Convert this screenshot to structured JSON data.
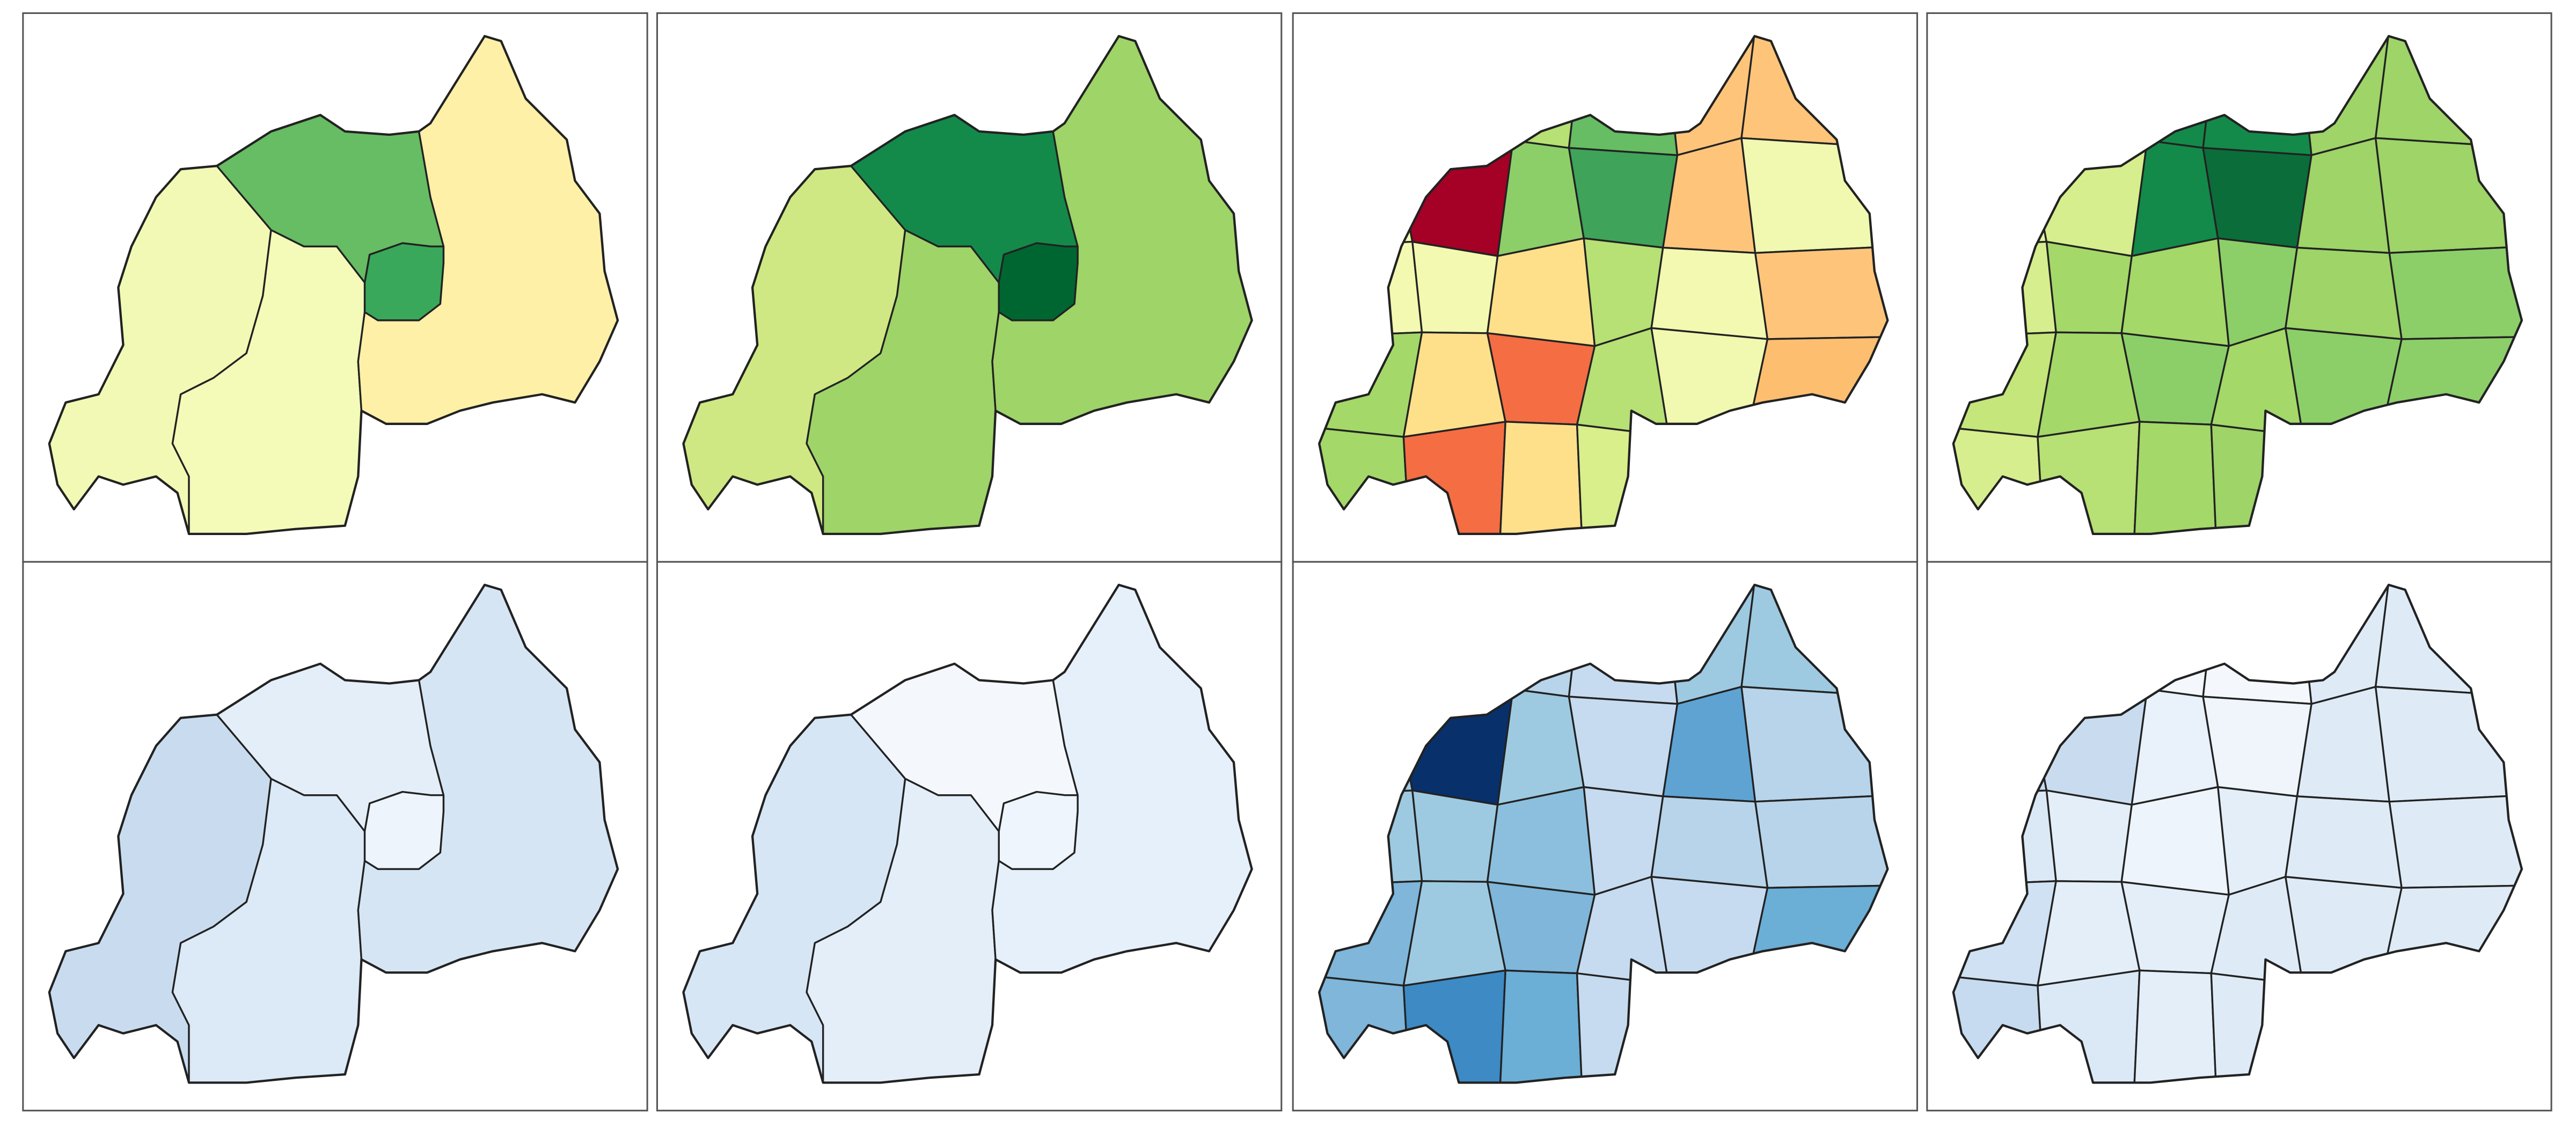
{
  "panels": [
    {
      "colors": [
        "#f2f9b4",
        "#f4fab8",
        "#66bd63",
        "#3aa85a",
        "#fff0a8"
      ]
    },
    {
      "colors": [
        "#cfe883",
        "#9ed468",
        "#138a4a",
        "#006631",
        "#9ed468"
      ]
    },
    {
      "colors": [
        "#f3f9b0",
        "#eef7b0",
        "#b7e075",
        "#66bd63",
        "#fec57a",
        "#fec57a",
        "#eef7b0",
        "#a50026",
        "#8ccf69",
        "#3fa35a",
        "#fec57a",
        "#f1f8b0",
        "#f3f9b0",
        "#f3f9b0",
        "#fee08b",
        "#b7e075",
        "#f3f9b0",
        "#fec57a",
        "#a4d869",
        "#fee08b",
        "#f46d43",
        "#b7e075",
        "#f1f8b0",
        "#fdbe6f",
        "#a4d869",
        "#f46d43",
        "#fee08b",
        "#d9ef8b",
        "#c4e67a",
        "#fdbe6f"
      ]
    },
    {
      "colors": [
        "#e8f5a8",
        "#e8f5a8",
        "#138a4a",
        "#138a4a",
        "#9ed468",
        "#9ed468",
        "#e3f3a4",
        "#d7ee8e",
        "#138a4a",
        "#0b6e3a",
        "#9ed468",
        "#9ed468",
        "#d7ee8e",
        "#a4d869",
        "#a4d869",
        "#8ccf69",
        "#9ed468",
        "#8ccf69",
        "#c4e67a",
        "#a4d869",
        "#8ccf69",
        "#a4d869",
        "#8ccf69",
        "#8ccf69",
        "#d7ee8e",
        "#b7e075",
        "#a4d869",
        "#9ed468",
        "#8ccf69",
        "#8ccf69"
      ]
    },
    {
      "colors": [
        "#c9dcef",
        "#dce9f6",
        "#e4eef8",
        "#edf4fb",
        "#d6e5f4"
      ]
    },
    {
      "colors": [
        "#d7e6f5",
        "#e3eef9",
        "#f4f8fd",
        "#eef5fc",
        "#e6f0fa"
      ]
    },
    {
      "colors": [
        "#c6dbef",
        "#c6dbef",
        "#b7d4ea",
        "#c6dbef",
        "#9ecae1",
        "#9ecae1",
        "#9ecae1",
        "#08306b",
        "#9ecae1",
        "#c6dbef",
        "#5fa3d3",
        "#b7d4ea",
        "#9ecae1",
        "#9ecae1",
        "#8cbfdd",
        "#c6dbef",
        "#b7d4ea",
        "#b7d4ea",
        "#7fb6da",
        "#9ecae1",
        "#7fb6da",
        "#c6dbef",
        "#c6dbef",
        "#6baed6",
        "#7fb6da",
        "#3d8ac4",
        "#6baed6",
        "#c6dbef",
        "#b7d4ea",
        "#6baed6"
      ]
    },
    {
      "colors": [
        "#dbe9f6",
        "#dbe9f6",
        "#f4f8fd",
        "#f4f8fd",
        "#deebf7",
        "#deebf7",
        "#c6dbef",
        "#c9dcef",
        "#e9f1fa",
        "#eff5fb",
        "#deebf7",
        "#deebf7",
        "#dbe9f6",
        "#e3eef9",
        "#eef4fb",
        "#e3eef9",
        "#deebf7",
        "#deebf7",
        "#cfe1f2",
        "#e3eef9",
        "#e3eef9",
        "#deebf7",
        "#deebf7",
        "#deebf7",
        "#c6dbef",
        "#dbe9f6",
        "#e3eef9",
        "#deebf7",
        "#deebf7",
        "#deebf7"
      ]
    }
  ]
}
